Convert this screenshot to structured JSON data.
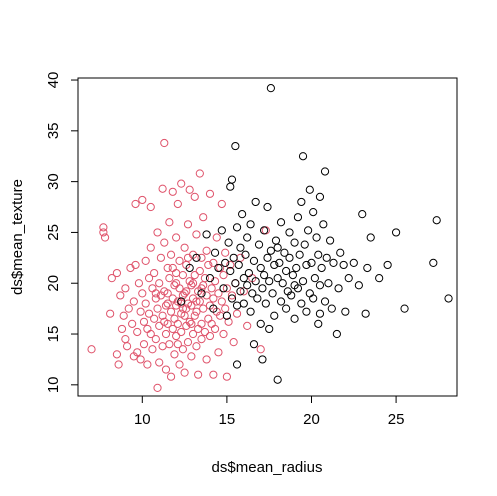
{
  "chart_data": {
    "type": "scatter",
    "xlabel": "ds$mean_radius",
    "ylabel": "ds$mean_texture",
    "xlim": [
      6.2,
      28.6
    ],
    "ylim": [
      8.9,
      40.2
    ],
    "xticks": [
      10,
      15,
      20,
      25
    ],
    "yticks": [
      10,
      15,
      20,
      25,
      30,
      35,
      40
    ],
    "grid": false,
    "legend": "none",
    "series": [
      {
        "color": "#DF536B",
        "points": [
          [
            7.0,
            13.5
          ],
          [
            7.7,
            25.5
          ],
          [
            7.7,
            25.0
          ],
          [
            7.8,
            24.5
          ],
          [
            8.1,
            17.0
          ],
          [
            8.2,
            20.5
          ],
          [
            8.5,
            21.0
          ],
          [
            8.5,
            13.0
          ],
          [
            8.6,
            12.0
          ],
          [
            8.7,
            18.8
          ],
          [
            8.8,
            15.5
          ],
          [
            8.9,
            16.8
          ],
          [
            9.0,
            14.5
          ],
          [
            9.0,
            19.5
          ],
          [
            9.1,
            13.8
          ],
          [
            9.2,
            17.5
          ],
          [
            9.3,
            21.5
          ],
          [
            9.4,
            16.0
          ],
          [
            9.5,
            12.8
          ],
          [
            9.5,
            18.2
          ],
          [
            9.6,
            21.8
          ],
          [
            9.6,
            27.8
          ],
          [
            9.7,
            13.2
          ],
          [
            9.7,
            15.2
          ],
          [
            9.8,
            20.0
          ],
          [
            9.9,
            17.2
          ],
          [
            9.9,
            12.5
          ],
          [
            10.0,
            28.2
          ],
          [
            10.0,
            19.0
          ],
          [
            10.1,
            16.2
          ],
          [
            10.1,
            14.0
          ],
          [
            10.2,
            22.2
          ],
          [
            10.2,
            18.0
          ],
          [
            10.3,
            15.5
          ],
          [
            10.3,
            12.0
          ],
          [
            10.4,
            20.5
          ],
          [
            10.4,
            17.0
          ],
          [
            10.5,
            27.5
          ],
          [
            10.5,
            15.0
          ],
          [
            10.5,
            23.5
          ],
          [
            10.6,
            13.5
          ],
          [
            10.6,
            19.5
          ],
          [
            10.7,
            16.5
          ],
          [
            10.7,
            21.0
          ],
          [
            10.8,
            18.5
          ],
          [
            10.8,
            14.5
          ],
          [
            10.9,
            25.0
          ],
          [
            10.9,
            9.7
          ],
          [
            10.9,
            17.5
          ],
          [
            11.0,
            20.0
          ],
          [
            11.0,
            15.8
          ],
          [
            11.0,
            12.2
          ],
          [
            11.1,
            22.5
          ],
          [
            11.1,
            18.8
          ],
          [
            11.2,
            16.8
          ],
          [
            11.2,
            13.8
          ],
          [
            11.2,
            29.3
          ],
          [
            11.3,
            33.8
          ],
          [
            11.3,
            24.0
          ],
          [
            11.3,
            19.2
          ],
          [
            11.4,
            17.8
          ],
          [
            11.4,
            15.0
          ],
          [
            11.4,
            11.5
          ],
          [
            11.5,
            21.5
          ],
          [
            11.5,
            18.0
          ],
          [
            11.5,
            16.0
          ],
          [
            11.6,
            14.0
          ],
          [
            11.6,
            26.0
          ],
          [
            11.6,
            20.5
          ],
          [
            11.7,
            17.2
          ],
          [
            11.7,
            10.8
          ],
          [
            11.7,
            22.8
          ],
          [
            11.8,
            18.5
          ],
          [
            11.8,
            15.5
          ],
          [
            11.8,
            29.0
          ],
          [
            11.9,
            19.8
          ],
          [
            11.9,
            16.5
          ],
          [
            11.9,
            13.0
          ],
          [
            12.0,
            21.0
          ],
          [
            12.0,
            17.8
          ],
          [
            12.0,
            24.5
          ],
          [
            12.0,
            14.8
          ],
          [
            12.1,
            18.2
          ],
          [
            12.1,
            16.0
          ],
          [
            12.1,
            27.8
          ],
          [
            12.2,
            19.5
          ],
          [
            12.2,
            12.0
          ],
          [
            12.2,
            22.2
          ],
          [
            12.3,
            17.0
          ],
          [
            12.3,
            15.2
          ],
          [
            12.3,
            29.8
          ],
          [
            12.4,
            20.8
          ],
          [
            12.4,
            18.8
          ],
          [
            12.4,
            13.5
          ],
          [
            12.5,
            16.8
          ],
          [
            12.5,
            23.5
          ],
          [
            12.5,
            19.0
          ],
          [
            12.5,
            11.2
          ],
          [
            12.6,
            17.5
          ],
          [
            12.6,
            15.8
          ],
          [
            12.6,
            21.8
          ],
          [
            12.7,
            18.0
          ],
          [
            12.7,
            25.8
          ],
          [
            12.7,
            14.2
          ],
          [
            12.8,
            20.2
          ],
          [
            12.8,
            16.2
          ],
          [
            12.8,
            29.2
          ],
          [
            12.9,
            17.8
          ],
          [
            12.9,
            19.8
          ],
          [
            12.9,
            12.8
          ],
          [
            13.0,
            22.8
          ],
          [
            13.0,
            15.0
          ],
          [
            13.0,
            18.5
          ],
          [
            13.1,
            16.8
          ],
          [
            13.1,
            28.5
          ],
          [
            13.1,
            20.8
          ],
          [
            13.2,
            17.2
          ],
          [
            13.2,
            13.8
          ],
          [
            13.2,
            24.8
          ],
          [
            13.3,
            19.2
          ],
          [
            13.3,
            15.5
          ],
          [
            13.3,
            11.0
          ],
          [
            13.4,
            21.2
          ],
          [
            13.4,
            18.2
          ],
          [
            13.4,
            30.8
          ],
          [
            13.5,
            16.0
          ],
          [
            13.5,
            22.5
          ],
          [
            13.5,
            14.5
          ],
          [
            13.6,
            19.8
          ],
          [
            13.6,
            17.5
          ],
          [
            13.6,
            26.5
          ],
          [
            13.7,
            15.2
          ],
          [
            13.7,
            20.5
          ],
          [
            13.8,
            18.8
          ],
          [
            13.8,
            12.5
          ],
          [
            13.8,
            23.2
          ],
          [
            13.9,
            16.5
          ],
          [
            13.9,
            21.8
          ],
          [
            14.0,
            17.8
          ],
          [
            14.0,
            28.8
          ],
          [
            14.0,
            14.8
          ],
          [
            14.1,
            19.5
          ],
          [
            14.1,
            16.0
          ],
          [
            14.2,
            22.0
          ],
          [
            14.2,
            18.5
          ],
          [
            14.2,
            11.0
          ],
          [
            14.3,
            15.5
          ],
          [
            14.3,
            20.2
          ],
          [
            14.4,
            24.5
          ],
          [
            14.4,
            17.2
          ],
          [
            14.5,
            19.0
          ],
          [
            14.5,
            13.2
          ],
          [
            14.6,
            21.5
          ],
          [
            14.6,
            16.8
          ],
          [
            14.7,
            27.8
          ],
          [
            14.7,
            18.2
          ],
          [
            14.8,
            20.8
          ],
          [
            14.8,
            15.0
          ],
          [
            14.9,
            23.0
          ],
          [
            14.9,
            17.5
          ],
          [
            15.0,
            19.5
          ],
          [
            15.0,
            10.8
          ],
          [
            15.1,
            16.2
          ],
          [
            15.2,
            21.8
          ],
          [
            15.3,
            18.8
          ],
          [
            15.4,
            14.2
          ],
          [
            15.5,
            20.0
          ],
          [
            15.6,
            17.0
          ],
          [
            15.8,
            22.5
          ],
          [
            16.0,
            19.2
          ],
          [
            16.2,
            15.8
          ],
          [
            16.5,
            20.5
          ],
          [
            17.0,
            13.5
          ],
          [
            17.3,
            25.2
          ],
          [
            11.5,
            19.0
          ],
          [
            12.0,
            20.0
          ],
          [
            12.3,
            18.0
          ],
          [
            12.6,
            19.2
          ],
          [
            12.9,
            16.0
          ],
          [
            13.2,
            18.2
          ],
          [
            11.8,
            21.5
          ],
          [
            12.4,
            17.5
          ],
          [
            13.0,
            20.0
          ],
          [
            11.3,
            16.2
          ],
          [
            10.8,
            19.0
          ],
          [
            12.1,
            14.0
          ],
          [
            13.5,
            19.5
          ],
          [
            12.7,
            22.5
          ]
        ]
      },
      {
        "color": "#000000",
        "points": [
          [
            12.3,
            18.2
          ],
          [
            12.8,
            21.5
          ],
          [
            13.2,
            22.5
          ],
          [
            13.5,
            19.0
          ],
          [
            13.8,
            24.8
          ],
          [
            14.0,
            20.5
          ],
          [
            14.2,
            17.5
          ],
          [
            14.3,
            23.0
          ],
          [
            14.5,
            21.5
          ],
          [
            14.7,
            25.2
          ],
          [
            14.8,
            19.5
          ],
          [
            14.9,
            22.0
          ],
          [
            15.0,
            16.8
          ],
          [
            15.1,
            24.0
          ],
          [
            15.2,
            21.2
          ],
          [
            15.2,
            29.5
          ],
          [
            15.3,
            18.5
          ],
          [
            15.3,
            30.2
          ],
          [
            15.4,
            22.5
          ],
          [
            15.5,
            20.0
          ],
          [
            15.5,
            33.5
          ],
          [
            15.6,
            25.5
          ],
          [
            15.6,
            17.8
          ],
          [
            15.7,
            21.8
          ],
          [
            15.8,
            19.2
          ],
          [
            15.8,
            23.5
          ],
          [
            15.9,
            26.8
          ],
          [
            16.0,
            20.5
          ],
          [
            16.0,
            18.0
          ],
          [
            16.1,
            22.8
          ],
          [
            16.2,
            24.5
          ],
          [
            16.2,
            19.8
          ],
          [
            16.3,
            21.0
          ],
          [
            16.4,
            17.2
          ],
          [
            16.4,
            25.8
          ],
          [
            16.5,
            19.0
          ],
          [
            16.6,
            22.2
          ],
          [
            16.7,
            20.2
          ],
          [
            16.7,
            28.0
          ],
          [
            16.8,
            18.5
          ],
          [
            16.9,
            23.8
          ],
          [
            17.0,
            21.5
          ],
          [
            17.0,
            16.0
          ],
          [
            17.1,
            19.5
          ],
          [
            17.2,
            25.2
          ],
          [
            17.2,
            20.8
          ],
          [
            17.3,
            18.0
          ],
          [
            17.4,
            22.5
          ],
          [
            17.4,
            27.5
          ],
          [
            17.5,
            15.5
          ],
          [
            17.5,
            20.2
          ],
          [
            17.6,
            23.2
          ],
          [
            17.6,
            39.2
          ],
          [
            17.7,
            19.0
          ],
          [
            17.8,
            21.8
          ],
          [
            17.8,
            16.8
          ],
          [
            17.9,
            24.2
          ],
          [
            18.0,
            20.5
          ],
          [
            18.0,
            10.5
          ],
          [
            18.1,
            22.0
          ],
          [
            18.2,
            18.2
          ],
          [
            18.2,
            26.0
          ],
          [
            18.3,
            20.0
          ],
          [
            18.4,
            23.0
          ],
          [
            18.5,
            17.5
          ],
          [
            18.5,
            21.2
          ],
          [
            18.6,
            19.2
          ],
          [
            18.7,
            25.0
          ],
          [
            18.7,
            22.5
          ],
          [
            18.8,
            18.8
          ],
          [
            18.9,
            20.8
          ],
          [
            19.0,
            24.0
          ],
          [
            19.0,
            16.5
          ],
          [
            19.1,
            21.5
          ],
          [
            19.2,
            19.5
          ],
          [
            19.2,
            26.5
          ],
          [
            19.3,
            22.8
          ],
          [
            19.4,
            18.0
          ],
          [
            19.4,
            28.0
          ],
          [
            19.5,
            20.2
          ],
          [
            19.5,
            32.5
          ],
          [
            19.6,
            23.8
          ],
          [
            19.7,
            17.2
          ],
          [
            19.7,
            21.8
          ],
          [
            19.8,
            25.2
          ],
          [
            19.9,
            19.0
          ],
          [
            19.9,
            29.2
          ],
          [
            20.0,
            22.0
          ],
          [
            20.1,
            18.5
          ],
          [
            20.1,
            27.0
          ],
          [
            20.2,
            20.5
          ],
          [
            20.3,
            24.5
          ],
          [
            20.4,
            16.0
          ],
          [
            20.4,
            22.8
          ],
          [
            20.5,
            19.8
          ],
          [
            20.5,
            28.5
          ],
          [
            20.6,
            21.5
          ],
          [
            20.7,
            25.8
          ],
          [
            20.8,
            18.2
          ],
          [
            20.8,
            31.0
          ],
          [
            20.9,
            22.5
          ],
          [
            21.0,
            20.0
          ],
          [
            21.1,
            24.2
          ],
          [
            21.2,
            17.5
          ],
          [
            21.3,
            22.0
          ],
          [
            21.5,
            15.0
          ],
          [
            21.6,
            19.5
          ],
          [
            21.7,
            23.0
          ],
          [
            21.9,
            21.8
          ],
          [
            22.0,
            17.2
          ],
          [
            22.2,
            20.5
          ],
          [
            22.5,
            22.0
          ],
          [
            22.8,
            19.8
          ],
          [
            23.0,
            26.8
          ],
          [
            23.2,
            17.0
          ],
          [
            23.3,
            21.5
          ],
          [
            23.5,
            24.5
          ],
          [
            24.0,
            20.5
          ],
          [
            24.5,
            21.8
          ],
          [
            25.0,
            25.0
          ],
          [
            25.5,
            17.5
          ],
          [
            27.2,
            22.0
          ],
          [
            27.4,
            26.2
          ],
          [
            28.1,
            18.5
          ],
          [
            16.6,
            14.0
          ],
          [
            17.1,
            12.5
          ],
          [
            15.6,
            12.0
          ],
          [
            18.0,
            23.5
          ],
          [
            19.0,
            19.8
          ],
          [
            20.5,
            17.0
          ]
        ]
      }
    ]
  }
}
